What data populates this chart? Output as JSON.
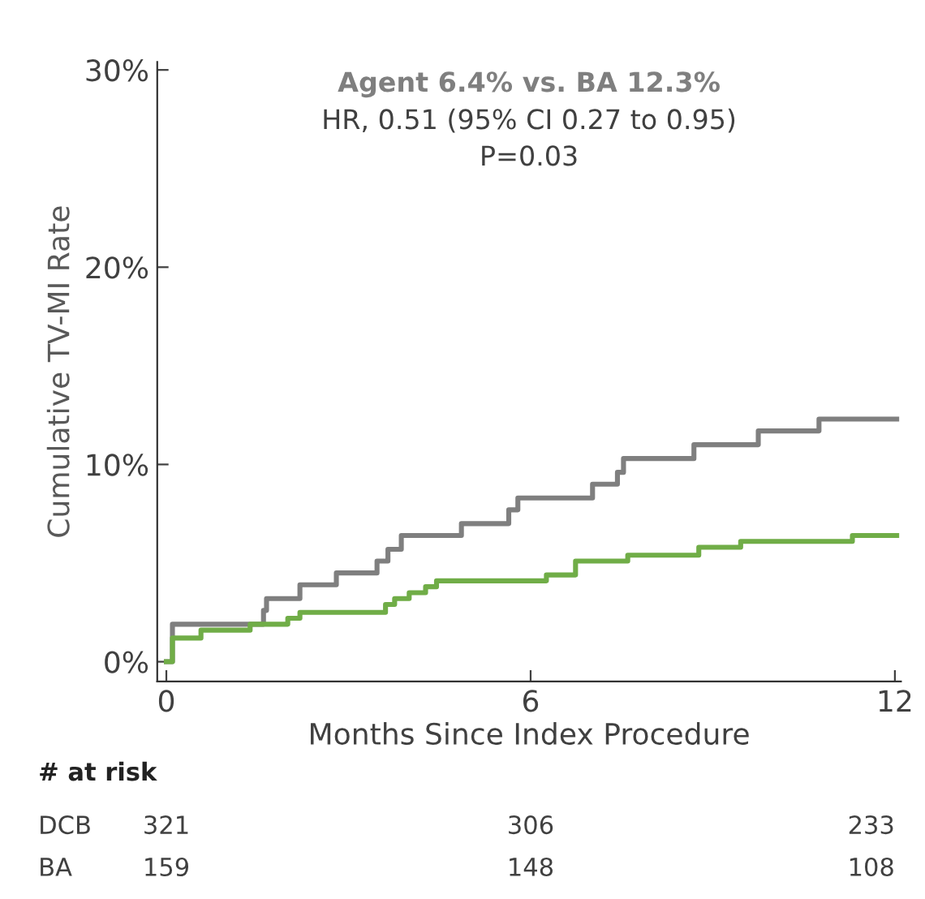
{
  "chart_data": {
    "type": "step",
    "title": "Agent 6.4% vs. BA 12.3%",
    "subtitle": "HR, 0.51 (95% CI 0.27 to 0.95)\nP=0.03",
    "xlabel": "Months Since Index Procedure",
    "ylabel": "Cumulative TV-MI Rate",
    "series": [
      {
        "color": "#7f7f7f",
        "x": [
          0,
          0.1,
          1.6,
          1.65,
          2.2,
          2.8,
          3.47,
          3.65,
          3.87,
          4.86,
          5.64,
          5.79,
          7.02,
          7.43,
          7.53,
          8.69,
          9.75,
          10.75,
          12.03
        ],
        "values": [
          0,
          1.9,
          2.6,
          3.2,
          3.9,
          4.5,
          5.1,
          5.7,
          6.4,
          7.0,
          7.7,
          8.3,
          9.0,
          9.6,
          10.3,
          11.0,
          11.7,
          12.3,
          12.3
        ]
      },
      {
        "color": "#70ad47",
        "x": [
          0,
          0.1,
          0.57,
          1.38,
          2.0,
          2.2,
          3.61,
          3.76,
          4.0,
          4.27,
          4.45,
          6.26,
          6.74,
          7.6,
          8.77,
          9.46,
          11.3,
          12.03
        ],
        "values": [
          0,
          1.2,
          1.6,
          1.9,
          2.2,
          2.5,
          2.9,
          3.2,
          3.5,
          3.8,
          4.1,
          4.4,
          5.1,
          5.4,
          5.8,
          6.1,
          6.4,
          6.4
        ]
      }
    ],
    "xlim": [
      -0.15,
      12.1
    ],
    "xticks": [
      0,
      6,
      12
    ],
    "ylim": [
      -1.0,
      30.4
    ],
    "yticks": [
      {
        "value": 0,
        "label": "0%"
      },
      {
        "value": 10,
        "label": "10%"
      },
      {
        "value": 20,
        "label": "20%"
      },
      {
        "value": 30,
        "label": "30%"
      }
    ],
    "grid": false,
    "legend": false,
    "annotations": [
      "# at risk",
      "DCB",
      "321",
      "306",
      "233",
      "BA",
      "159",
      "148",
      "108"
    ]
  }
}
